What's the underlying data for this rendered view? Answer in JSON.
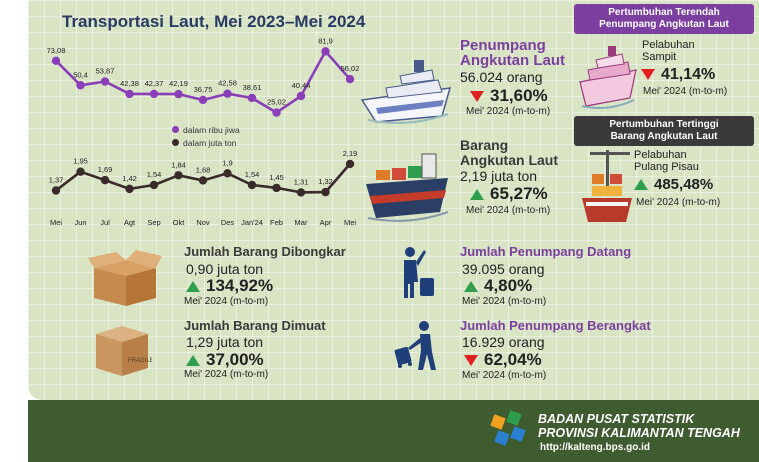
{
  "title": "Transportasi Laut, Mei 2023–Mei 2024",
  "chart_data": [
    {
      "type": "line",
      "categories": [
        "Mei",
        "Jun",
        "Jul",
        "Agt",
        "Sep",
        "Okt",
        "Nov",
        "Des",
        "Jan'24",
        "Feb",
        "Mar",
        "Apr",
        "Mei"
      ],
      "series": [
        {
          "name": "dalam ribu jiwa",
          "values": [
            73.08,
            50.4,
            53.87,
            42.38,
            42.37,
            42.19,
            36.75,
            42.58,
            38.61,
            25.02,
            40.44,
            81.9,
            56.02
          ],
          "labels": [
            "73,08",
            "50,4",
            "53,87",
            "42,38",
            "42,37",
            "42,19",
            "36,75",
            "42,58",
            "38,61",
            "25,02",
            "40,44",
            "81,9",
            "56,02"
          ],
          "color": "#8a3fb8"
        },
        {
          "name": "dalam juta ton",
          "values": [
            1.37,
            1.95,
            1.69,
            1.42,
            1.54,
            1.84,
            1.68,
            1.9,
            1.54,
            1.45,
            1.31,
            1.32,
            2.19
          ],
          "labels": [
            "1,37",
            "1,95",
            "1,69",
            "1,42",
            "1,54",
            "1,84",
            "1,68",
            "1,9",
            "1,54",
            "1,45",
            "1,31",
            "1,32",
            "2,19"
          ],
          "color": "#3a2a2a"
        }
      ],
      "legend": "center"
    }
  ],
  "penumpang": {
    "title1": "Penumpang",
    "title2": "Angkutan Laut",
    "value": "56.024 orang",
    "pct": "31,60%",
    "note": "Mei' 2024 (m-to-m)",
    "trend": "down"
  },
  "barang": {
    "title1": "Barang",
    "title2": "Angkutan Laut",
    "value": "2,19 juta ton",
    "pct": "65,27%",
    "note": "Mei' 2024 (m-to-m)",
    "trend": "up"
  },
  "terendah": {
    "header1": "Pertumbuhan Terendah",
    "header2": "Penumpang Angkutan Laut",
    "place1": "Pelabuhan",
    "place2": "Sampit",
    "pct": "41,14%",
    "note": "Mei' 2024 (m-to-m)",
    "trend": "down"
  },
  "tertinggi": {
    "header1": "Pertumbuhan Tertinggi",
    "header2": "Barang Angkutan Laut",
    "place1": "Pelabuhan",
    "place2": "Pulang Pisau",
    "pct": "485,48%",
    "note": "Mei' 2024 (m-to-m)",
    "trend": "up"
  },
  "dibongkar": {
    "title": "Jumlah Barang Dibongkar",
    "value": "0,90 juta ton",
    "pct": "134,92%",
    "note": "Mei' 2024 (m-to-m)",
    "trend": "up"
  },
  "dimuat": {
    "title": "Jumlah Barang Dimuat",
    "value": "1,29 juta ton",
    "pct": "37,00%",
    "note": "Mei' 2024 (m-to-m)",
    "trend": "up"
  },
  "datang": {
    "title": "Jumlah Penumpang Datang",
    "value": "39.095 orang",
    "pct": "4,80%",
    "note": "Mei' 2024 (m-to-m)",
    "trend": "up"
  },
  "berangkat": {
    "title": "Jumlah Penumpang Berangkat",
    "value": "16.929 orang",
    "pct": "62,04%",
    "note": "Mei' 2024 (m-to-m)",
    "trend": "down"
  },
  "footer": {
    "org1": "BADAN PUSAT STATISTIK",
    "org2": "PROVINSI KALIMANTAN TENGAH",
    "url": "http://kalteng.bps.go.id"
  },
  "colors": {
    "panel": "#d8e4c4",
    "footer": "#3f5c31",
    "purple": "#7b3fa0",
    "up": "#2e9e4e",
    "down": "#e02020"
  }
}
